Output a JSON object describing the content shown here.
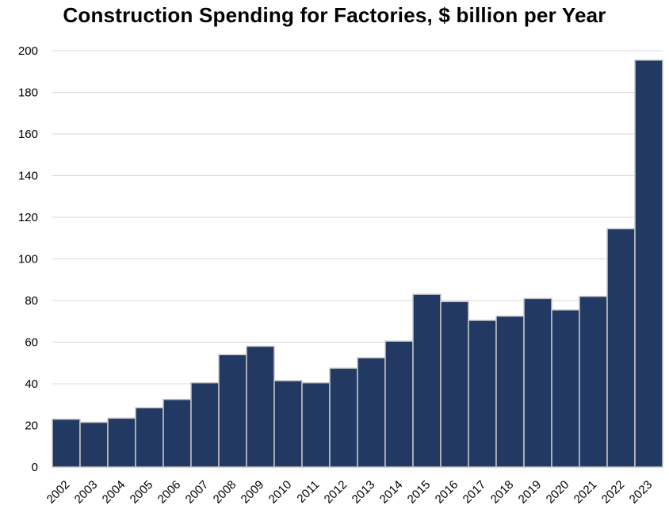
{
  "chart_data": {
    "type": "bar",
    "title": "Construction Spending for Factories, $ billion per Year",
    "xlabel": "",
    "ylabel": "",
    "categories": [
      "2002",
      "2003",
      "2004",
      "2005",
      "2006",
      "2007",
      "2008",
      "2009",
      "2010",
      "2011",
      "2012",
      "2013",
      "2014",
      "2015",
      "2016",
      "2017",
      "2018",
      "2019",
      "2020",
      "2021",
      "2022",
      "2023"
    ],
    "values": [
      23,
      21.5,
      23.5,
      28.5,
      32.5,
      40.5,
      54,
      58,
      41.5,
      40.5,
      47.5,
      52.5,
      60.5,
      83,
      79.5,
      70.5,
      72.5,
      81,
      75.5,
      82,
      114.5,
      195.5
    ],
    "ylim": [
      0,
      200
    ],
    "yticks": [
      0,
      20,
      40,
      60,
      80,
      100,
      120,
      140,
      160,
      180,
      200
    ],
    "grid": true,
    "bar_color": "#223a63",
    "bar_edge_color": "#c8c8c8",
    "grid_color": "#d9d9d9"
  }
}
